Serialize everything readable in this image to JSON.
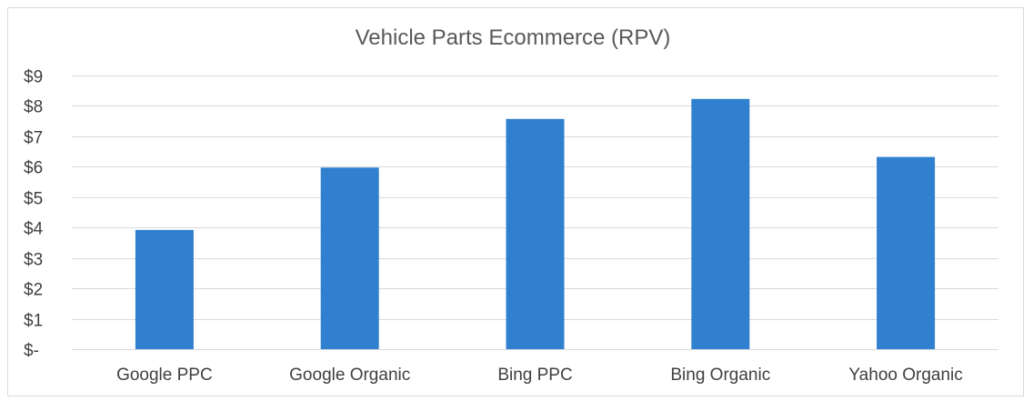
{
  "chart_data": {
    "type": "bar",
    "title": "Vehicle Parts Ecommerce (RPV)",
    "xlabel": "",
    "ylabel": "",
    "categories": [
      "Google PPC",
      "Google Organic",
      "Bing PPC",
      "Bing Organic",
      "Yahoo Organic"
    ],
    "values": [
      3.92,
      5.97,
      7.57,
      8.23,
      6.32
    ],
    "ylim": [
      0,
      9
    ],
    "yticks": [
      0,
      1,
      2,
      3,
      4,
      5,
      6,
      7,
      8,
      9
    ],
    "ytick_labels": [
      "$-",
      "$1",
      "$2",
      "$3",
      "$4",
      "$5",
      "$6",
      "$7",
      "$8",
      "$9"
    ],
    "grid": "horizontal",
    "legend": "none",
    "bar_color": "#3080CF",
    "gridline_color": "#D9D9D9",
    "frame_color": "#D9D9D9"
  }
}
